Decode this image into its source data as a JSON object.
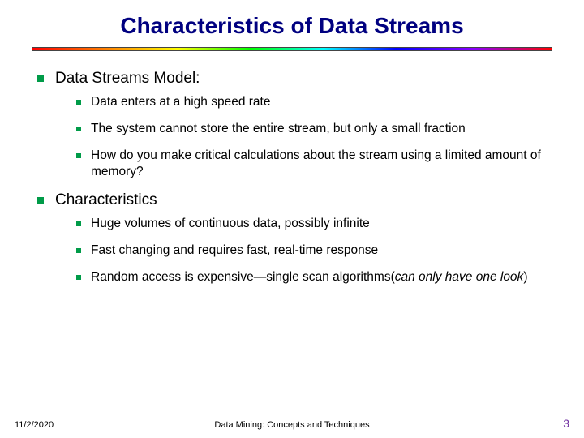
{
  "title": "Characteristics of Data Streams",
  "sections": [
    {
      "heading": "Data Streams Model:",
      "bullets": [
        {
          "text": "Data enters at a high speed rate"
        },
        {
          "text": "The system cannot store the entire stream, but only a small fraction"
        },
        {
          "text": "How do you make critical calculations about the stream using a limited amount of memory?"
        }
      ]
    },
    {
      "heading": "Characteristics",
      "bullets": [
        {
          "text": "Huge volumes of continuous data, possibly infinite"
        },
        {
          "text": "Fast changing and requires fast, real-time response"
        },
        {
          "text": "Random access is expensive—single scan algorithms(",
          "italic_tail": "can only have one look",
          "tail": ")"
        }
      ]
    }
  ],
  "footer": {
    "date": "11/2/2020",
    "center": "Data Mining: Concepts and Techniques",
    "page": "3"
  },
  "colors": {
    "title": "#000080",
    "bullet": "#009b48",
    "page_number": "#7030a0",
    "background": "#ffffff"
  }
}
